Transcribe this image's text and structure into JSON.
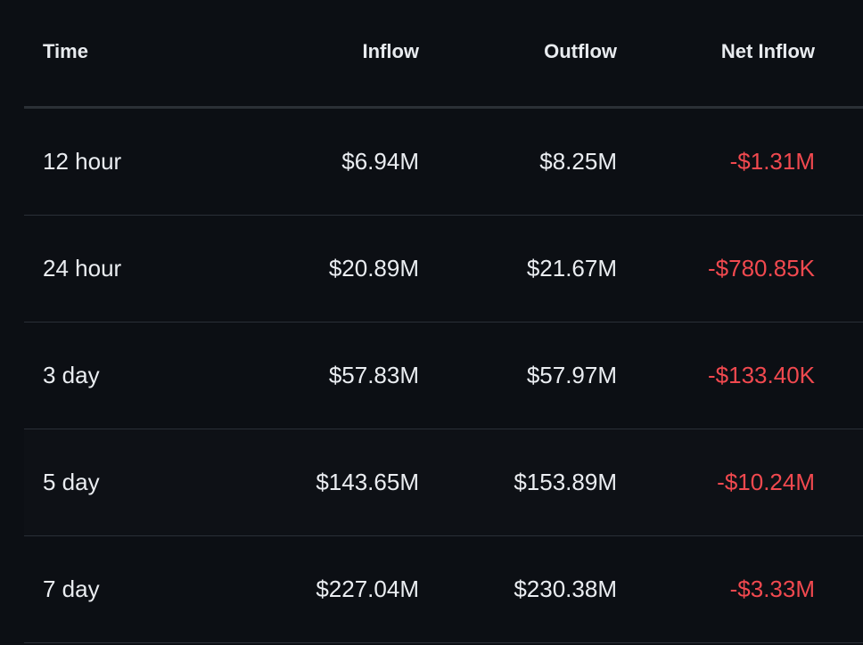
{
  "colors": {
    "background": "#0c0f14",
    "text": "#eaedf1",
    "negative": "#f1494f",
    "divider": "#2a2f37"
  },
  "table": {
    "headers": {
      "time": "Time",
      "inflow": "Inflow",
      "outflow": "Outflow",
      "net_inflow": "Net Inflow"
    },
    "rows": [
      {
        "time": "12 hour",
        "inflow": "$6.94M",
        "outflow": "$8.25M",
        "net_inflow": "-$1.31M"
      },
      {
        "time": "24 hour",
        "inflow": "$20.89M",
        "outflow": "$21.67M",
        "net_inflow": "-$780.85K"
      },
      {
        "time": "3 day",
        "inflow": "$57.83M",
        "outflow": "$57.97M",
        "net_inflow": "-$133.40K"
      },
      {
        "time": "5 day",
        "inflow": "$143.65M",
        "outflow": "$153.89M",
        "net_inflow": "-$10.24M"
      },
      {
        "time": "7 day",
        "inflow": "$227.04M",
        "outflow": "$230.38M",
        "net_inflow": "-$3.33M"
      }
    ]
  }
}
